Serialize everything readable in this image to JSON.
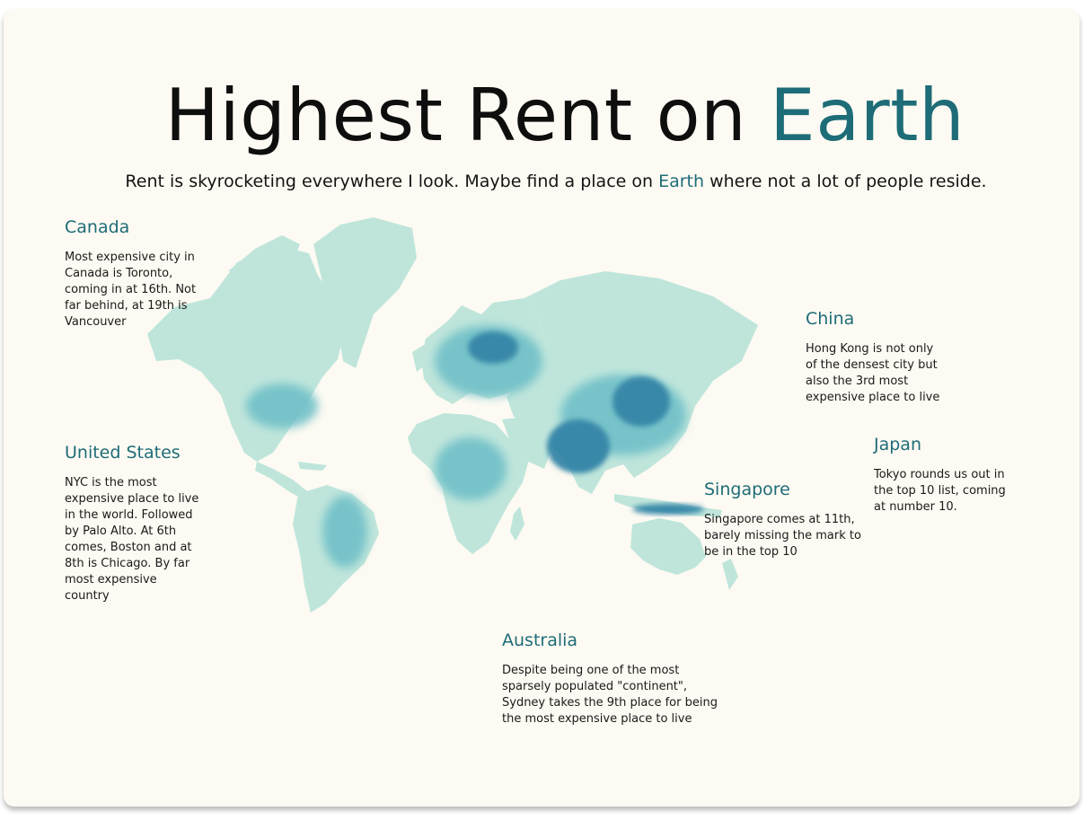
{
  "colors": {
    "accent": "#1e6c78",
    "background": "#fcfaf2",
    "map_light": "#bfe5db",
    "map_mid": "#6fc0c8",
    "map_dark": "#2a7fa4"
  },
  "header": {
    "title_main": "Highest Rent on ",
    "title_accent": "Earth",
    "subtitle_before": "Rent is skyrocketing everywhere I look. Maybe find a place on ",
    "subtitle_accent": "Earth",
    "subtitle_after": " where not a lot of people reside."
  },
  "map": {
    "icon": "world-map-population-density"
  },
  "regions": {
    "canada": {
      "title": "Canada",
      "body": "Most expensive city in Canada is Toronto, coming in at 16th. Not far behind, at 19th is Vancouver"
    },
    "united_states": {
      "title": "United States",
      "body": "NYC is the most expensive place to live in the world. Followed by Palo Alto. At 6th comes, Boston and at 8th is Chicago. By far most expensive country"
    },
    "china": {
      "title": "China",
      "body": "Hong Kong is not only of the densest city but also the 3rd most expensive place to live"
    },
    "japan": {
      "title": "Japan",
      "body": "Tokyo rounds us out in the top 10 list, coming at number 10."
    },
    "singapore": {
      "title": "Singapore",
      "body": "Singapore comes at 11th, barely missing the mark to be in the top 10"
    },
    "australia": {
      "title": "Australia",
      "body": "Despite being one of the most sparsely populated \"continent\", Sydney takes the 9th place for being the most expensive place to live"
    }
  }
}
